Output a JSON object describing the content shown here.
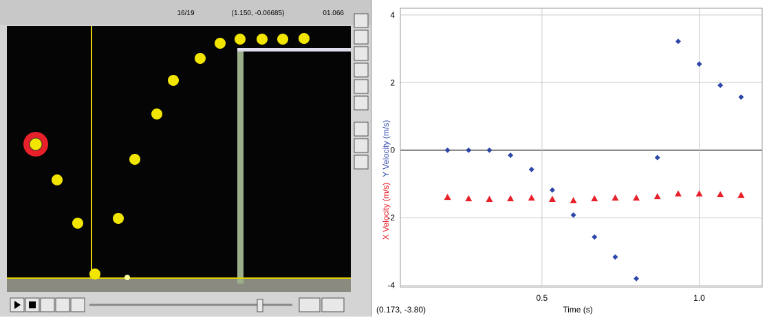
{
  "video": {
    "frame": "16/19",
    "coordinates": "(1.150, -0.06685)",
    "time": "01.066"
  },
  "chart_data": {
    "type": "scatter",
    "x_label": "Time (s)",
    "readout": "(0.173, -3.80)",
    "x": [
      0.2,
      0.267,
      0.333,
      0.4,
      0.467,
      0.533,
      0.6,
      0.667,
      0.733,
      0.8,
      0.867,
      0.933,
      1.0,
      1.067,
      1.133
    ],
    "series": [
      {
        "name": "X Velocity (m/s)",
        "color": "#e8202a",
        "marker": "triangle",
        "values": [
          -1.39,
          -1.43,
          -1.45,
          -1.43,
          -1.41,
          -1.45,
          -1.49,
          -1.43,
          -1.41,
          -1.41,
          -1.37,
          -1.29,
          -1.29,
          -1.31,
          -1.33
        ]
      },
      {
        "name": "Y Velocity (m/s)",
        "color": "#2d47a8",
        "marker": "diamond",
        "values": [
          0,
          0,
          0,
          -0.15,
          -0.57,
          -1.18,
          -1.92,
          -2.57,
          -3.16,
          -3.8,
          -0.22,
          3.22,
          2.55,
          1.92,
          1.57
        ]
      }
    ],
    "xlim": [
      0.05,
      1.2
    ],
    "ylim": [
      -4.05,
      4.2
    ],
    "xticks": [
      0.5,
      {
        "value": 1,
        "label": "1.0"
      }
    ],
    "yticks": [
      -4,
      -2,
      0,
      2,
      4
    ],
    "grid": true
  }
}
